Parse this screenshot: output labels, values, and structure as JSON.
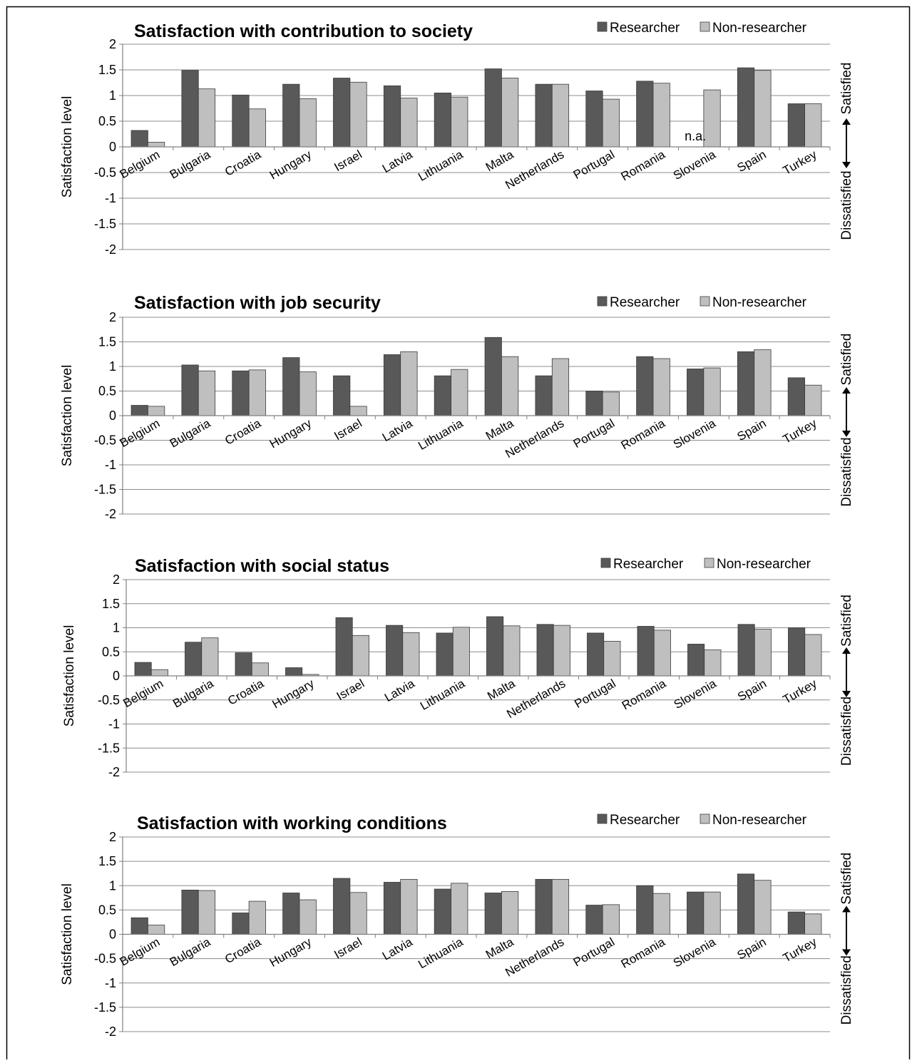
{
  "chart_data": [
    {
      "type": "bar",
      "title": "Satisfaction  with contribution to society",
      "ylabel": "Satisfaction level",
      "ylim": [
        -2,
        2
      ],
      "yticks": [
        "2",
        "1.5",
        "1",
        "0.5",
        "0",
        "-0.5",
        "-1",
        "-1.5",
        "-2"
      ],
      "grid": true,
      "legend": "top-right",
      "right_labels": {
        "top": "Satisfied",
        "bottom": "Dissatisfied"
      },
      "categories": [
        "Belgium",
        "Bulgaria",
        "Croatia",
        "Hungary",
        "Israel",
        "Latvia",
        "Lithuania",
        "Malta",
        "Netherlands",
        "Portugal",
        "Romania",
        "Slovenia",
        "Spain",
        "Turkey"
      ],
      "series": [
        {
          "name": "Researcher",
          "color": "#595959",
          "values": [
            0.32,
            1.49,
            1.01,
            1.22,
            1.34,
            1.19,
            1.05,
            1.52,
            1.22,
            1.09,
            1.28,
            null,
            1.54,
            0.84
          ]
        },
        {
          "name": "Non-researcher",
          "color": "#bfbfbf",
          "values": [
            0.09,
            1.13,
            0.74,
            0.94,
            1.26,
            0.95,
            0.97,
            1.34,
            1.22,
            0.93,
            1.24,
            1.11,
            1.49,
            0.84
          ]
        }
      ],
      "annotations": [
        {
          "category": "Slovenia",
          "text": "n.a."
        }
      ]
    },
    {
      "type": "bar",
      "title": "Satisfaction  with job security",
      "ylabel": "Satisfaction level",
      "ylim": [
        -2,
        2
      ],
      "yticks": [
        "2",
        "1.5",
        "1",
        "0.5",
        "0",
        "-0.5",
        "-1",
        "-1.5",
        "-2"
      ],
      "grid": true,
      "legend": "top-right",
      "right_labels": {
        "top": "Satisfied",
        "bottom": "Dissatisfied"
      },
      "categories": [
        "Belgium",
        "Bulgaria",
        "Croatia",
        "Hungary",
        "Israel",
        "Latvia",
        "Lithuania",
        "Malta",
        "Netherlands",
        "Portugal",
        "Romania",
        "Slovenia",
        "Spain",
        "Turkey"
      ],
      "series": [
        {
          "name": "Researcher",
          "color": "#595959",
          "values": [
            0.21,
            1.03,
            0.91,
            1.18,
            0.81,
            1.24,
            0.81,
            1.59,
            0.81,
            0.5,
            1.2,
            0.95,
            1.3,
            0.77
          ]
        },
        {
          "name": "Non-researcher",
          "color": "#bfbfbf",
          "values": [
            0.19,
            0.91,
            0.93,
            0.89,
            0.19,
            1.3,
            0.94,
            1.2,
            1.16,
            0.48,
            1.16,
            0.97,
            1.34,
            0.62
          ]
        }
      ],
      "annotations": []
    },
    {
      "type": "bar",
      "title": "Satisfaction  with social status",
      "ylabel": "Satisfaction level",
      "ylim": [
        -2,
        2
      ],
      "yticks": [
        "2",
        "1.5",
        "1",
        "0.5",
        "0",
        "-0.5",
        "-1",
        "-1.5",
        "-2"
      ],
      "grid": true,
      "legend": "top-right",
      "right_labels": {
        "top": "Satisfied",
        "bottom": "Dissatisfied"
      },
      "categories": [
        "Belgium",
        "Bulgaria",
        "Croatia",
        "Hungary",
        "Israel",
        "Latvia",
        "Lithuania",
        "Malta",
        "Netherlands",
        "Portugal",
        "Romania",
        "Slovenia",
        "Spain",
        "Turkey"
      ],
      "series": [
        {
          "name": "Researcher",
          "color": "#595959",
          "values": [
            0.28,
            0.7,
            0.48,
            0.17,
            1.21,
            1.05,
            0.89,
            1.23,
            1.07,
            0.89,
            1.03,
            0.66,
            1.07,
            1.0
          ]
        },
        {
          "name": "Non-researcher",
          "color": "#bfbfbf",
          "values": [
            0.13,
            0.79,
            0.27,
            0.03,
            0.84,
            0.9,
            1.01,
            1.04,
            1.05,
            0.72,
            0.95,
            0.54,
            0.97,
            0.86
          ]
        }
      ],
      "annotations": []
    },
    {
      "type": "bar",
      "title": "Satisfaction  with working conditions",
      "ylabel": "Satisfaction level",
      "ylim": [
        -2,
        2
      ],
      "yticks": [
        "2",
        "1.5",
        "1",
        "0.5",
        "0",
        "-0.5",
        "-1",
        "-1.5",
        "-2"
      ],
      "grid": true,
      "legend": "top-right",
      "right_labels": {
        "top": "Satisfied",
        "bottom": "Dissatisfied"
      },
      "categories": [
        "Belgium",
        "Bulgaria",
        "Croatia",
        "Hungary",
        "Israel",
        "Latvia",
        "Lithuania",
        "Malta",
        "Netherlands",
        "Portugal",
        "Romania",
        "Slovenia",
        "Spain",
        "Turkey"
      ],
      "series": [
        {
          "name": "Researcher",
          "color": "#595959",
          "values": [
            0.34,
            0.91,
            0.44,
            0.85,
            1.15,
            1.07,
            0.93,
            0.85,
            1.13,
            0.6,
            1.0,
            0.87,
            1.24,
            0.46
          ]
        },
        {
          "name": "Non-researcher",
          "color": "#bfbfbf",
          "values": [
            0.19,
            0.9,
            0.68,
            0.71,
            0.86,
            1.13,
            1.05,
            0.88,
            1.13,
            0.61,
            0.84,
            0.87,
            1.11,
            0.42
          ]
        }
      ],
      "annotations": []
    }
  ]
}
